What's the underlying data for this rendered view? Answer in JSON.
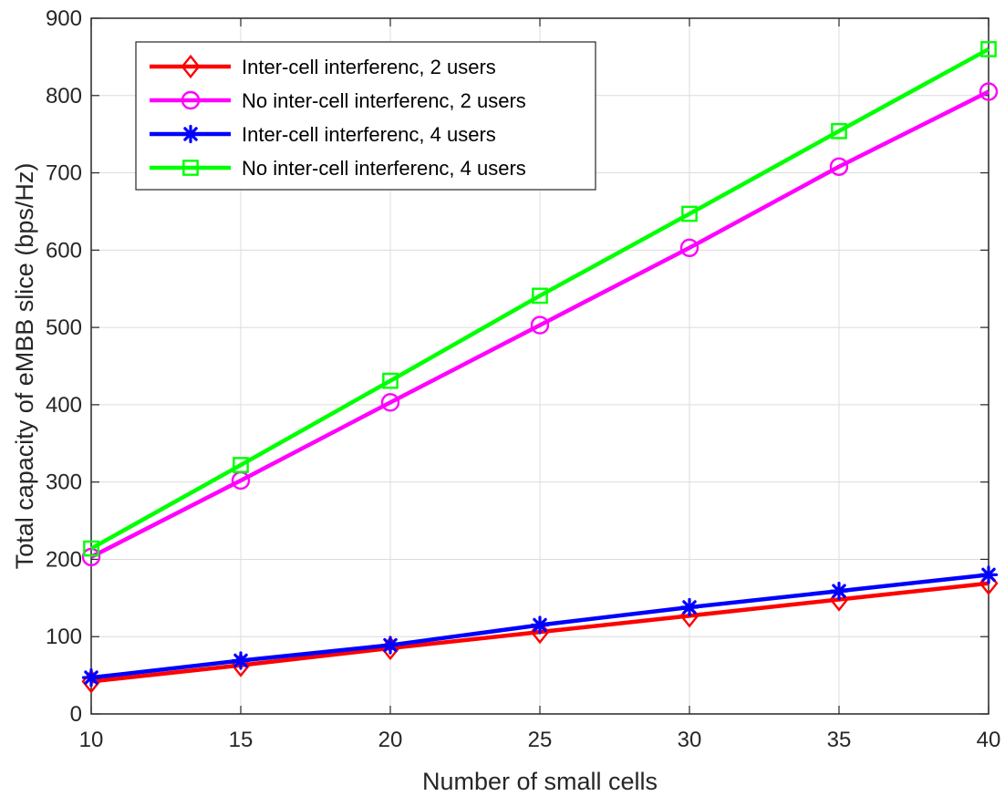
{
  "colors": {
    "background": "#ffffff",
    "axis": "#262626",
    "grid": "#dcdcdc"
  },
  "chart_data": {
    "type": "line",
    "title": "",
    "xlabel": "Number of small cells",
    "ylabel": "Total capacity of eMBB slice (bps/Hz)",
    "xlim": [
      10,
      40
    ],
    "ylim": [
      0,
      900
    ],
    "x_ticks": [
      10,
      15,
      20,
      25,
      30,
      35,
      40
    ],
    "y_ticks": [
      0,
      100,
      200,
      300,
      400,
      500,
      600,
      700,
      800,
      900
    ],
    "grid": true,
    "legend_position": "top-left",
    "x": [
      10,
      15,
      20,
      25,
      30,
      35,
      40
    ],
    "series": [
      {
        "name": "Inter-cell interferenc, 2 users",
        "color": "#ff0000",
        "marker": "diamond",
        "values": [
          42,
          63,
          85,
          106,
          127,
          148,
          169
        ]
      },
      {
        "name": "No inter-cell interferenc, 2 users",
        "color": "#ff00ff",
        "marker": "circle",
        "values": [
          203,
          302,
          403,
          503,
          603,
          708,
          805
        ]
      },
      {
        "name": "Inter-cell interferenc, 4 users",
        "color": "#0000ff",
        "marker": "asterisk",
        "values": [
          47,
          69,
          89,
          115,
          138,
          159,
          180
        ]
      },
      {
        "name": "No inter-cell interferenc, 4 users",
        "color": "#00ff00",
        "marker": "square",
        "values": [
          214,
          322,
          431,
          541,
          647,
          754,
          860
        ]
      }
    ]
  }
}
